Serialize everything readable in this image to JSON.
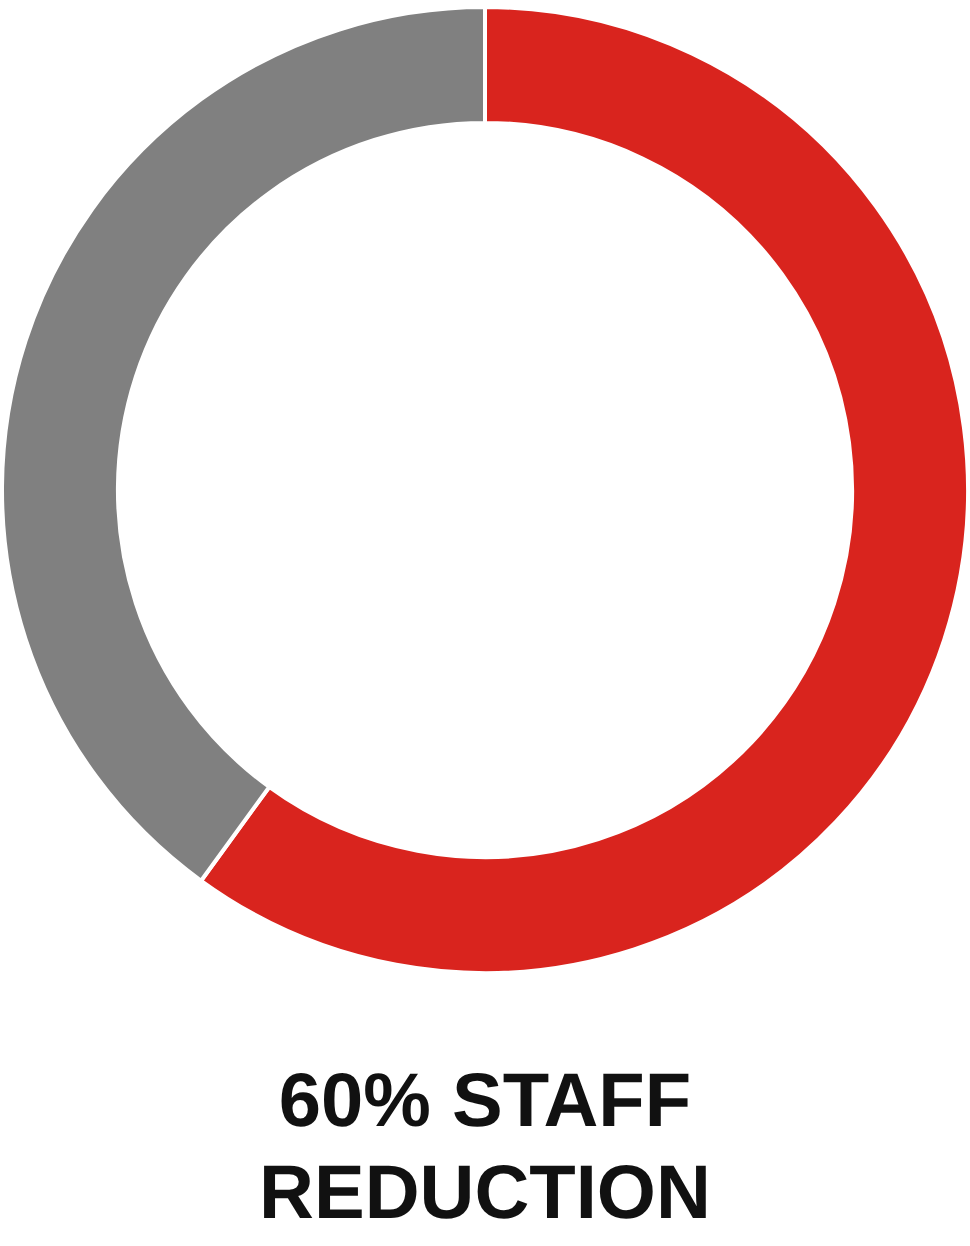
{
  "chart_data": {
    "type": "donut",
    "title": "60% STAFF REDUCTION",
    "categories": [
      null,
      null
    ],
    "values": [
      60,
      40
    ],
    "colors": [
      "#d9241e",
      "#808080"
    ],
    "legend": false
  }
}
